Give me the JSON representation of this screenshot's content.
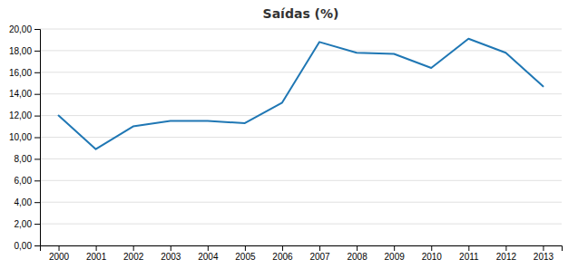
{
  "chart_data": {
    "type": "line",
    "title": "Saídas (%)",
    "x": [
      2000,
      2001,
      2002,
      2003,
      2004,
      2005,
      2006,
      2007,
      2008,
      2009,
      2010,
      2011,
      2012,
      2013
    ],
    "values": [
      12.0,
      8.9,
      11.0,
      11.5,
      11.5,
      11.3,
      13.2,
      18.8,
      17.8,
      17.7,
      16.4,
      19.1,
      17.8,
      14.7
    ],
    "xlim": [
      1999.5,
      2013.5
    ],
    "xticks": [
      2000,
      2001,
      2002,
      2003,
      2004,
      2005,
      2006,
      2007,
      2008,
      2009,
      2010,
      2011,
      2012,
      2013
    ],
    "ylim": [
      0,
      20
    ],
    "yticks": [
      {
        "value": 0.0,
        "label": "0,00"
      },
      {
        "value": 2.0,
        "label": "2,00"
      },
      {
        "value": 4.0,
        "label": "4,00"
      },
      {
        "value": 6.0,
        "label": "6,00"
      },
      {
        "value": 8.0,
        "label": "8,00"
      },
      {
        "value": 10.0,
        "label": "10,00"
      },
      {
        "value": 12.0,
        "label": "12,00"
      },
      {
        "value": 14.0,
        "label": "14,00"
      },
      {
        "value": 16.0,
        "label": "16,00"
      },
      {
        "value": 18.0,
        "label": "18,00"
      },
      {
        "value": 20.0,
        "label": "20,00"
      }
    ],
    "grid": true
  }
}
